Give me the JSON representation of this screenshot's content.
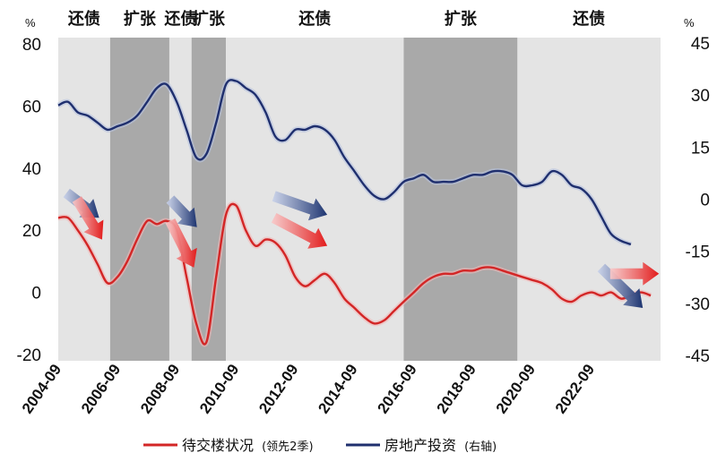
{
  "chart_data": {
    "type": "line",
    "y_left": {
      "unit": "%",
      "ticks": [
        "80",
        "60",
        "40",
        "20",
        "0",
        "-20"
      ],
      "range": [
        -22,
        82
      ]
    },
    "y_right": {
      "unit": "%",
      "ticks": [
        "45",
        "30",
        "15",
        "0",
        "-15",
        "-30",
        "-45"
      ],
      "range": [
        -46.5,
        46.5
      ]
    },
    "x_ticks": [
      "2004-09",
      "2006-09",
      "2008-09",
      "2010-09",
      "2012-09",
      "2014-09",
      "2016-09",
      "2018-09",
      "2020-09",
      "2022-09"
    ],
    "x_range": [
      2004.67,
      2025.0
    ],
    "phases": [
      {
        "label": "还债",
        "start": 2004.67,
        "end": 2006.42,
        "color": "#e4e4e4"
      },
      {
        "label": "扩张",
        "start": 2006.42,
        "end": 2008.42,
        "color": "#a9a9a9"
      },
      {
        "label": "还债",
        "start": 2008.42,
        "end": 2009.17,
        "color": "#e4e4e4"
      },
      {
        "label": "扩张",
        "start": 2009.17,
        "end": 2010.33,
        "color": "#a9a9a9"
      },
      {
        "label": "还债",
        "start": 2010.33,
        "end": 2016.33,
        "color": "#e4e4e4"
      },
      {
        "label": "扩张",
        "start": 2016.33,
        "end": 2020.17,
        "color": "#a9a9a9"
      },
      {
        "label": "还债",
        "start": 2020.17,
        "end": 2025.0,
        "color": "#e4e4e4"
      }
    ],
    "series": [
      {
        "name": "待交楼状况",
        "name_note": "(领先2季)",
        "axis": "left",
        "color": "#d32626",
        "x": [
          2004.67,
          2005.0,
          2005.33,
          2005.67,
          2006.0,
          2006.33,
          2006.67,
          2007.0,
          2007.33,
          2007.67,
          2008.0,
          2008.33,
          2008.67,
          2009.0,
          2009.33,
          2009.67,
          2010.0,
          2010.33,
          2010.67,
          2011.0,
          2011.33,
          2011.67,
          2012.0,
          2012.33,
          2012.67,
          2013.0,
          2013.33,
          2013.67,
          2014.0,
          2014.33,
          2014.67,
          2015.0,
          2015.33,
          2015.67,
          2016.0,
          2016.33,
          2016.67,
          2017.0,
          2017.33,
          2017.67,
          2018.0,
          2018.33,
          2018.67,
          2019.0,
          2019.33,
          2019.67,
          2020.0,
          2020.33,
          2020.67,
          2021.0,
          2021.33,
          2021.67,
          2022.0,
          2022.33,
          2022.67,
          2023.0,
          2023.33,
          2023.67,
          2024.0,
          2024.33,
          2024.67
        ],
        "values": [
          24,
          24,
          20,
          15,
          9,
          3,
          5,
          10,
          17,
          23,
          22,
          23,
          20,
          5,
          -10,
          -16,
          5,
          25,
          28,
          20,
          15,
          17,
          16,
          12,
          5,
          2,
          4,
          6,
          3,
          -2,
          -5,
          -8,
          -10,
          -9,
          -6,
          -3,
          0,
          3,
          5,
          6,
          6,
          7,
          7,
          8,
          8,
          7,
          6,
          5,
          4,
          3,
          1,
          -2,
          -3,
          -1,
          0,
          -1,
          0,
          -2,
          -1,
          0,
          -1
        ]
      },
      {
        "name": "房地产投资",
        "name_note": "(右轴)",
        "axis": "right",
        "color": "#1f2f6e",
        "x": [
          2004.67,
          2005.0,
          2005.33,
          2005.67,
          2006.0,
          2006.33,
          2006.67,
          2007.0,
          2007.33,
          2007.67,
          2008.0,
          2008.33,
          2008.67,
          2009.0,
          2009.33,
          2009.67,
          2010.0,
          2010.33,
          2010.67,
          2011.0,
          2011.33,
          2011.67,
          2012.0,
          2012.33,
          2012.67,
          2013.0,
          2013.33,
          2013.67,
          2014.0,
          2014.33,
          2014.67,
          2015.0,
          2015.33,
          2015.67,
          2016.0,
          2016.33,
          2016.67,
          2017.0,
          2017.33,
          2017.67,
          2018.0,
          2018.33,
          2018.67,
          2019.0,
          2019.33,
          2019.67,
          2020.0,
          2020.33,
          2020.67,
          2021.0,
          2021.33,
          2021.67,
          2022.0,
          2022.33,
          2022.67,
          2023.0,
          2023.33,
          2023.67,
          2024.0
        ],
        "values": [
          27,
          28,
          25,
          24,
          22,
          20,
          21,
          22,
          24,
          28,
          32,
          33,
          28,
          20,
          12,
          13,
          22,
          33,
          34,
          32,
          30,
          25,
          18,
          17,
          20,
          20,
          21,
          20,
          17,
          12,
          8,
          4,
          1,
          0,
          2,
          5,
          6,
          7,
          5,
          5,
          5,
          6,
          7,
          7,
          8,
          8,
          7,
          4,
          4,
          5,
          8,
          7,
          4,
          3,
          0,
          -5,
          -10,
          -12,
          -13
        ]
      }
    ],
    "arrows": [
      {
        "color": "navy",
        "x1": 2004.95,
        "y1": 32,
        "x2": 2006.05,
        "y2": 24
      },
      {
        "color": "navy",
        "x1": 2008.45,
        "y1": 30,
        "x2": 2009.35,
        "y2": 21
      },
      {
        "color": "navy",
        "x1": 2011.95,
        "y1": 31,
        "x2": 2013.75,
        "y2": 25
      },
      {
        "color": "navy",
        "x1": 2023.0,
        "y1": 8,
        "x2": 2024.4,
        "y2": -5
      },
      {
        "color": "red",
        "x1": 2005.3,
        "y1": 30,
        "x2": 2006.15,
        "y2": 17
      },
      {
        "color": "red",
        "x1": 2008.45,
        "y1": 23,
        "x2": 2009.25,
        "y2": 8
      },
      {
        "color": "red",
        "x1": 2011.95,
        "y1": 24,
        "x2": 2013.75,
        "y2": 15
      },
      {
        "color": "red",
        "x1": 2023.3,
        "y1": 6,
        "x2": 2024.95,
        "y2": 6
      }
    ]
  }
}
